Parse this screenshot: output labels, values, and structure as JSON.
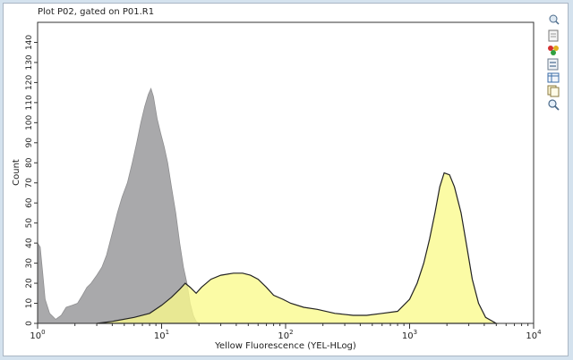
{
  "plot": {
    "title": "Plot P02, gated on P01.R1"
  },
  "toolbar": {
    "icons": [
      "zoom-fit-icon",
      "document-icon",
      "color-dots-icon",
      "page-settings-icon",
      "table-icon",
      "copy-icon",
      "magnifier-icon"
    ]
  },
  "chart_data": {
    "type": "area",
    "xlabel": "Yellow Fluorescence (YEL-HLog)",
    "ylabel": "Count",
    "x_scale": "log",
    "xlim": [
      1,
      10000
    ],
    "ylim": [
      0,
      150
    ],
    "x_ticks": [
      {
        "base": "10",
        "exp": "0",
        "value": 1
      },
      {
        "base": "10",
        "exp": "1",
        "value": 10
      },
      {
        "base": "10",
        "exp": "2",
        "value": 100
      },
      {
        "base": "10",
        "exp": "3",
        "value": 1000
      },
      {
        "base": "10",
        "exp": "4",
        "value": 10000
      }
    ],
    "y_ticks": [
      {
        "label": "0",
        "value": 0
      },
      {
        "label": "10",
        "value": 10
      },
      {
        "label": "20",
        "value": 20
      },
      {
        "label": "30",
        "value": 30
      },
      {
        "label": "40",
        "value": 40
      },
      {
        "label": "50",
        "value": 50
      },
      {
        "label": "60",
        "value": 60
      },
      {
        "label": "70",
        "value": 70
      },
      {
        "label": "80",
        "value": 80
      },
      {
        "label": "90",
        "value": 90
      },
      {
        "label": "100",
        "value": 100
      },
      {
        "label": "110",
        "value": 110
      },
      {
        "label": "120",
        "value": 120
      },
      {
        "label": "130",
        "value": 130
      },
      {
        "label": "140",
        "value": 140
      }
    ],
    "grid": false,
    "series": [
      {
        "color": "#a9a9ab",
        "stroke": "#8f8f91",
        "points": [
          [
            1,
            40
          ],
          [
            1.05,
            38
          ],
          [
            1.1,
            25
          ],
          [
            1.15,
            12
          ],
          [
            1.25,
            5
          ],
          [
            1.4,
            2
          ],
          [
            1.55,
            4
          ],
          [
            1.7,
            8
          ],
          [
            1.9,
            9
          ],
          [
            2.1,
            10
          ],
          [
            2.3,
            14
          ],
          [
            2.5,
            18
          ],
          [
            2.7,
            20
          ],
          [
            3.0,
            24
          ],
          [
            3.3,
            28
          ],
          [
            3.6,
            34
          ],
          [
            4.0,
            45
          ],
          [
            4.4,
            55
          ],
          [
            4.8,
            63
          ],
          [
            5.3,
            70
          ],
          [
            5.8,
            80
          ],
          [
            6.3,
            90
          ],
          [
            6.8,
            100
          ],
          [
            7.3,
            108
          ],
          [
            7.8,
            114
          ],
          [
            8.2,
            117
          ],
          [
            8.6,
            113
          ],
          [
            9.2,
            102
          ],
          [
            9.8,
            95
          ],
          [
            10.5,
            88
          ],
          [
            11.2,
            80
          ],
          [
            12.0,
            68
          ],
          [
            13.0,
            55
          ],
          [
            14.0,
            40
          ],
          [
            15.0,
            28
          ],
          [
            16.0,
            20
          ],
          [
            17.0,
            10
          ],
          [
            18.0,
            4
          ],
          [
            19.0,
            1
          ],
          [
            20,
            0
          ]
        ]
      },
      {
        "color": "#fafa8c",
        "stroke": "#222222",
        "points": [
          [
            3.0,
            0
          ],
          [
            4.0,
            1
          ],
          [
            6.0,
            3
          ],
          [
            8.0,
            5
          ],
          [
            10,
            9
          ],
          [
            12,
            13
          ],
          [
            14,
            17
          ],
          [
            15.5,
            20
          ],
          [
            17,
            18
          ],
          [
            19,
            15
          ],
          [
            21,
            18
          ],
          [
            25,
            22
          ],
          [
            30,
            24
          ],
          [
            38,
            25
          ],
          [
            45,
            25
          ],
          [
            52,
            24
          ],
          [
            60,
            22
          ],
          [
            70,
            18
          ],
          [
            80,
            14
          ],
          [
            95,
            12
          ],
          [
            110,
            10
          ],
          [
            140,
            8
          ],
          [
            180,
            7
          ],
          [
            250,
            5
          ],
          [
            350,
            4
          ],
          [
            450,
            4
          ],
          [
            600,
            5
          ],
          [
            800,
            6
          ],
          [
            1000,
            12
          ],
          [
            1150,
            20
          ],
          [
            1300,
            30
          ],
          [
            1450,
            42
          ],
          [
            1600,
            55
          ],
          [
            1750,
            68
          ],
          [
            1900,
            75
          ],
          [
            2100,
            74
          ],
          [
            2300,
            68
          ],
          [
            2600,
            55
          ],
          [
            2900,
            38
          ],
          [
            3200,
            22
          ],
          [
            3600,
            10
          ],
          [
            4100,
            3
          ],
          [
            5000,
            0
          ]
        ]
      }
    ]
  }
}
